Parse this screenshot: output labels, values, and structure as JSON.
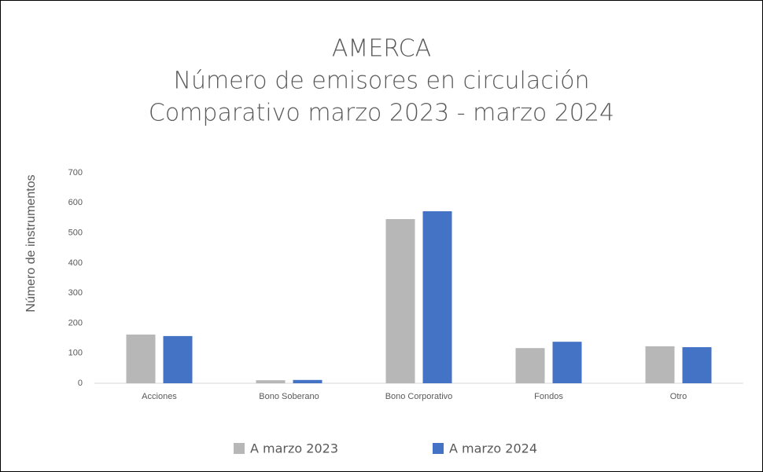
{
  "chart_data": {
    "type": "bar",
    "title": [
      "AMERCA",
      "Número de emisores en circulación",
      "Comparativo marzo 2023 - marzo 2024"
    ],
    "y_label": "Número de instrumentos",
    "categories": [
      "Acciones",
      "Bono Soberano",
      "Bono Corporativo",
      "Fondos",
      "Otro"
    ],
    "series": [
      {
        "name": "A marzo 2023",
        "color": "#b7b7b7",
        "values": [
          162,
          10,
          546,
          117,
          123
        ]
      },
      {
        "name": "A marzo 2024",
        "color": "#4472c4",
        "values": [
          157,
          11,
          572,
          138,
          120
        ]
      }
    ],
    "ylim": [
      0,
      700
    ],
    "yticks": [
      0,
      100,
      200,
      300,
      400,
      500,
      600,
      700
    ],
    "grid": false,
    "legend": "bottom"
  }
}
